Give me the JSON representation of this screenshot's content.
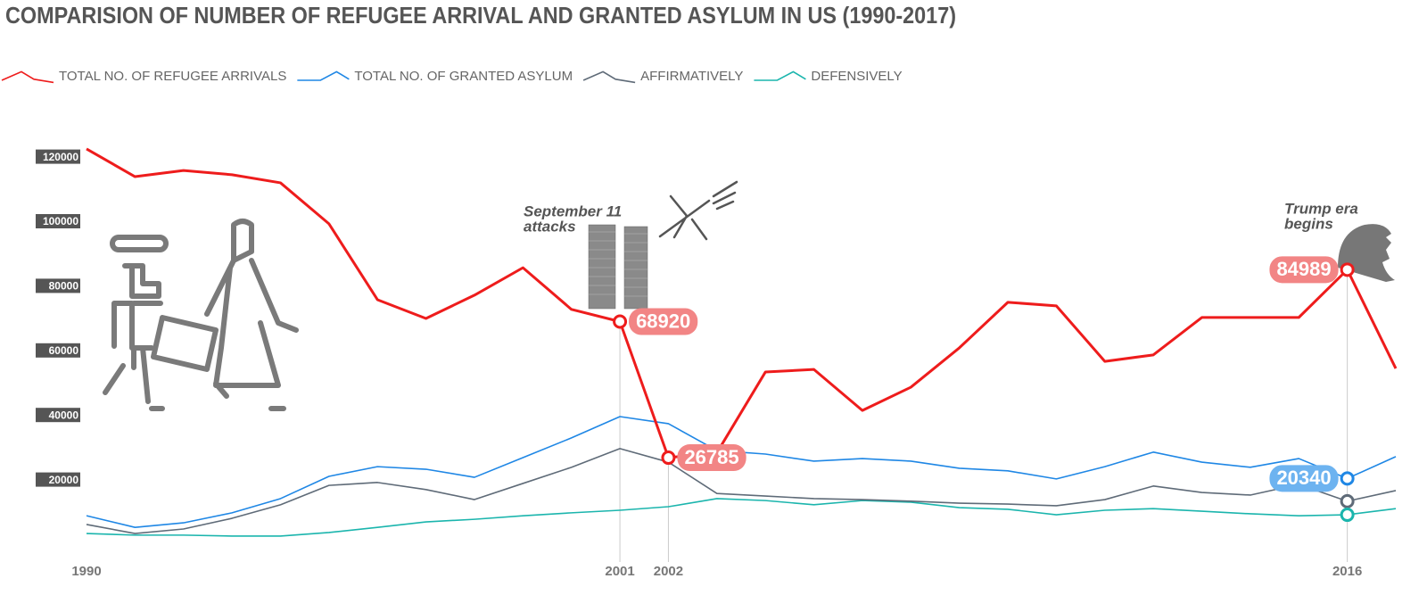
{
  "chart_data": {
    "type": "line",
    "title": "COMPARISION OF NUMBER OF REFUGEE ARRIVAL AND GRANTED ASYLUM IN US (1990-2017)",
    "x": [
      1990,
      1991,
      1992,
      1993,
      1994,
      1995,
      1996,
      1997,
      1998,
      1999,
      2000,
      2001,
      2002,
      2003,
      2004,
      2005,
      2006,
      2007,
      2008,
      2009,
      2010,
      2011,
      2012,
      2013,
      2014,
      2015,
      2016,
      2017
    ],
    "series": [
      {
        "name": "TOTAL NO. OF REFUGEE ARRIVALS",
        "color": "#ee1c1c",
        "width": 3,
        "markers": [
          2001,
          2002,
          2016
        ],
        "show_labels": true,
        "label_color": "#f28585",
        "values": [
          122400,
          113800,
          115700,
          114400,
          111900,
          99200,
          75700,
          69900,
          77100,
          85600,
          72700,
          68920,
          26785,
          28300,
          53300,
          54100,
          41400,
          48600,
          60800,
          74900,
          73800,
          56600,
          58600,
          70200,
          70200,
          70200,
          84989,
          54400
        ]
      },
      {
        "name": "TOTAL NO. OF GRANTED ASYLUM",
        "color": "#1f87e5",
        "width": 1.6,
        "markers": [
          2016
        ],
        "show_labels": true,
        "label_color": "#6db3f0",
        "values": [
          8800,
          5200,
          6600,
          9700,
          14100,
          21000,
          24000,
          23200,
          20700,
          26800,
          32900,
          39500,
          37300,
          29000,
          27900,
          25700,
          26500,
          25700,
          23500,
          22700,
          20200,
          24000,
          28500,
          25400,
          23800,
          26500,
          20340,
          27100
        ]
      },
      {
        "name": "AFFIRMATIVELY",
        "color": "#5f6b78",
        "width": 1.6,
        "markers": [
          2016
        ],
        "show_labels": false,
        "values": [
          6100,
          3300,
          4700,
          8000,
          12200,
          18200,
          19100,
          16900,
          13800,
          18800,
          23800,
          29600,
          25400,
          15700,
          14900,
          14100,
          13800,
          13300,
          12700,
          12400,
          11900,
          13800,
          18000,
          16000,
          15200,
          18500,
          13300,
          16600
        ]
      },
      {
        "name": "DEFENSIVELY",
        "color": "#1bb5ad",
        "width": 1.6,
        "markers": [
          2016
        ],
        "show_labels": false,
        "values": [
          3300,
          2800,
          2800,
          2500,
          2500,
          3600,
          5200,
          6900,
          7700,
          8800,
          9700,
          10500,
          11600,
          14100,
          13500,
          12200,
          13500,
          13000,
          11300,
          10800,
          9100,
          10500,
          11000,
          10200,
          9400,
          8800,
          9100,
          11000
        ]
      }
    ],
    "xlim": [
      1990,
      2017
    ],
    "xticks": [
      1990,
      2001,
      2002,
      2016
    ],
    "ylim": [
      0,
      125000
    ],
    "yticks": [
      20000,
      40000,
      60000,
      80000,
      100000,
      120000
    ],
    "annotations": [
      {
        "lines": [
          "September 11",
          "attacks"
        ]
      },
      {
        "lines": [
          "Trump era",
          "begins"
        ]
      }
    ]
  }
}
